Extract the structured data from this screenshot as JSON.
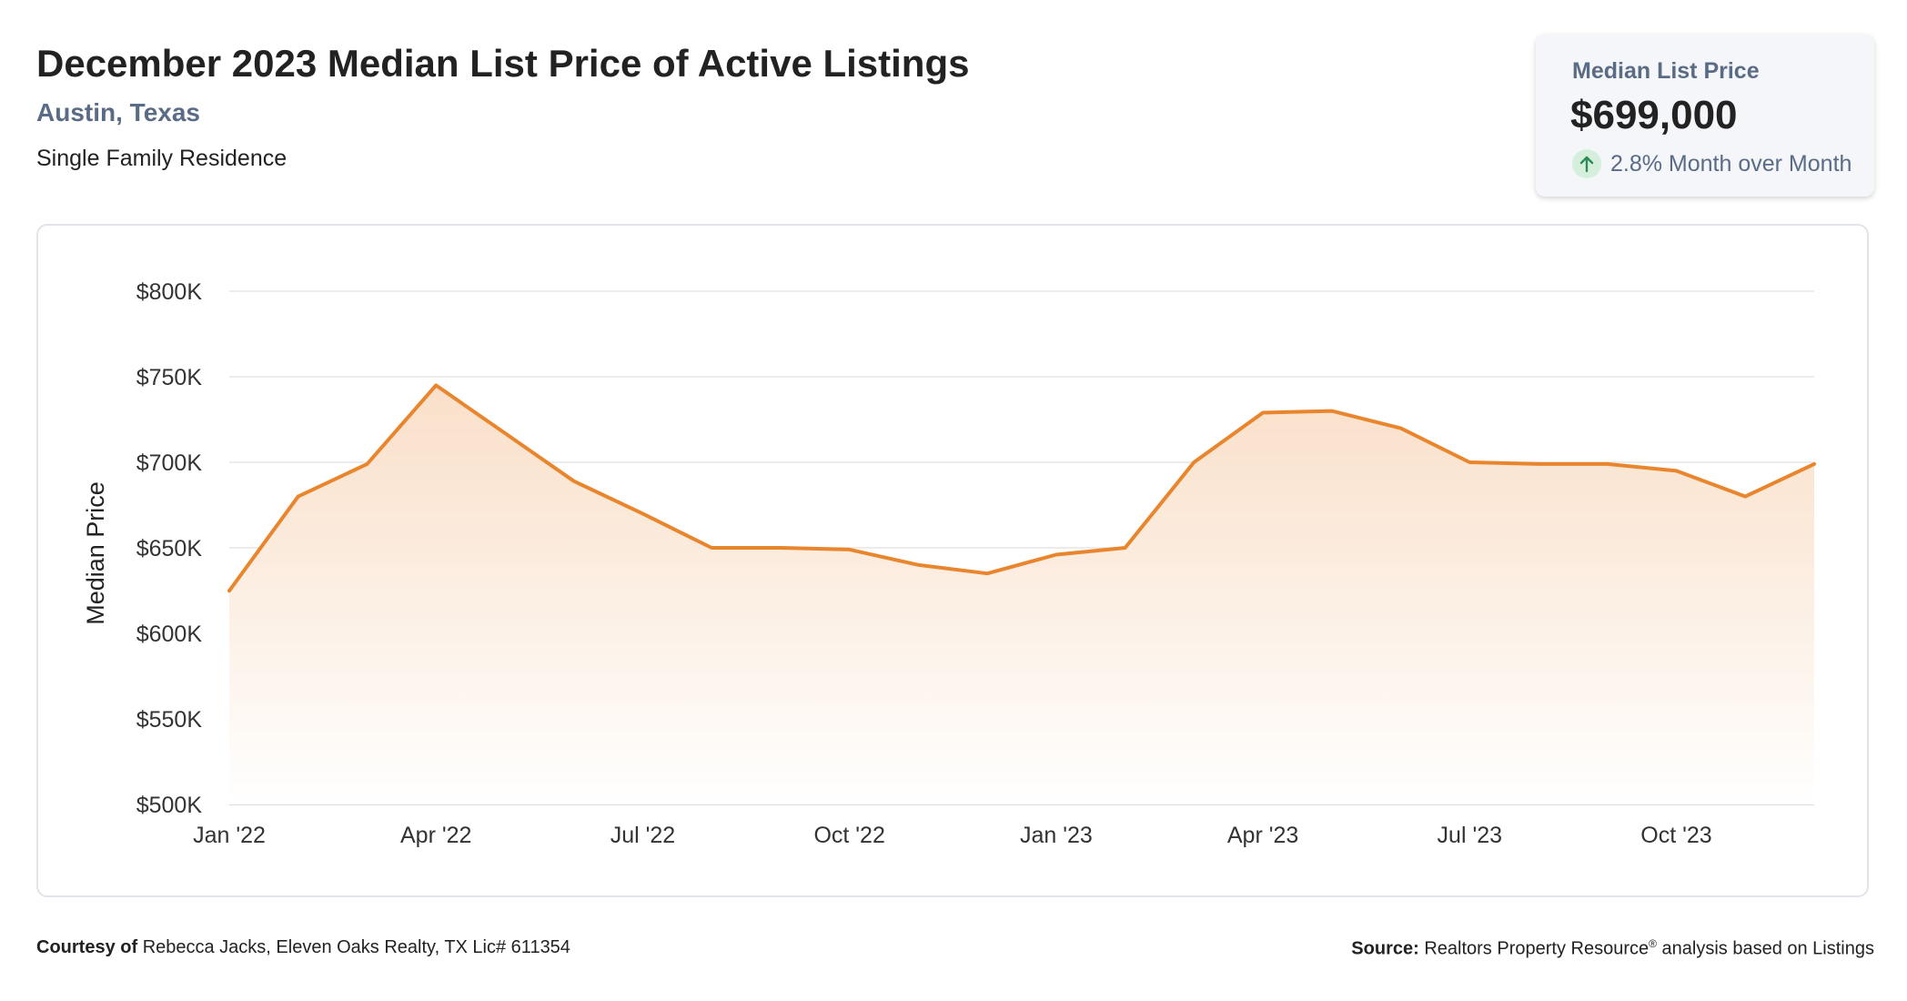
{
  "header": {
    "title": "December 2023 Median List Price of Active Listings",
    "location": "Austin, Texas",
    "property_type": "Single Family Residence"
  },
  "stat_card": {
    "label": "Median List Price",
    "value": "$699,000",
    "change": "2.8% Month over Month",
    "direction_icon": "arrow-up-icon",
    "change_color": "#2e8b57"
  },
  "footer": {
    "courtesy_label": "Courtesy of",
    "courtesy_text": "Rebecca Jacks, Eleven Oaks Realty, TX Lic# 611354",
    "source_label": "Source:",
    "source_text_1": "Realtors Property Resource",
    "source_mark": "®",
    "source_text_2": "analysis based on Listings"
  },
  "colors": {
    "line": "#e8852d",
    "area_top": "#f9dec6",
    "area_bottom": "#ffffff",
    "grid": "#e5e5e5",
    "tick_text": "#333333"
  },
  "chart_data": {
    "type": "area",
    "title": "",
    "xlabel": "",
    "ylabel": "Median Price",
    "ylim": [
      500000,
      800000
    ],
    "grid": true,
    "y_ticks": [
      {
        "value": 800000,
        "label": "$800K"
      },
      {
        "value": 750000,
        "label": "$750K"
      },
      {
        "value": 700000,
        "label": "$700K"
      },
      {
        "value": 650000,
        "label": "$650K"
      },
      {
        "value": 600000,
        "label": "$600K"
      },
      {
        "value": 550000,
        "label": "$550K"
      },
      {
        "value": 500000,
        "label": "$500K"
      }
    ],
    "x_ticks": [
      {
        "index": 0,
        "label": "Jan '22"
      },
      {
        "index": 3,
        "label": "Apr '22"
      },
      {
        "index": 6,
        "label": "Jul '22"
      },
      {
        "index": 9,
        "label": "Oct '22"
      },
      {
        "index": 12,
        "label": "Jan '23"
      },
      {
        "index": 15,
        "label": "Apr '23"
      },
      {
        "index": 18,
        "label": "Jul '23"
      },
      {
        "index": 21,
        "label": "Oct '23"
      }
    ],
    "x": [
      "Jan 2022",
      "Feb 2022",
      "Mar 2022",
      "Apr 2022",
      "May 2022",
      "Jun 2022",
      "Jul 2022",
      "Aug 2022",
      "Sep 2022",
      "Oct 2022",
      "Nov 2022",
      "Dec 2022",
      "Jan 2023",
      "Feb 2023",
      "Mar 2023",
      "Apr 2023",
      "May 2023",
      "Jun 2023",
      "Jul 2023",
      "Aug 2023",
      "Sep 2023",
      "Oct 2023",
      "Nov 2023",
      "Dec 2023"
    ],
    "series": [
      {
        "values": [
          624900,
          680000,
          699000,
          745000,
          717000,
          689000,
          670000,
          650000,
          650000,
          649000,
          640000,
          635000,
          646000,
          650000,
          700000,
          729000,
          730000,
          719900,
          700000,
          699000,
          699000,
          695000,
          680000,
          699000
        ]
      }
    ]
  }
}
